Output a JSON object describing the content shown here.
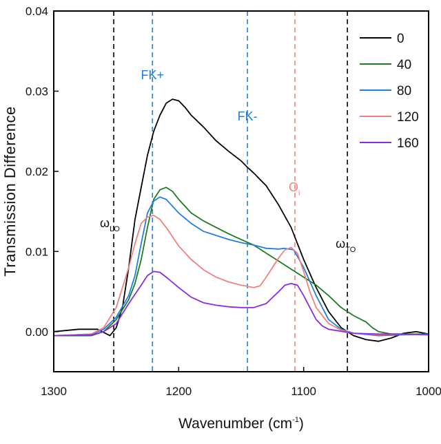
{
  "chart_data": {
    "type": "line",
    "xlabel": "Wavenumber (cm",
    "xlabel_sup": "-1",
    "xlabel_tail": ")",
    "ylabel": "Transmission Difference",
    "xlim": [
      1300,
      1000
    ],
    "ylim": [
      -0.005,
      0.04
    ],
    "x_reversed": true,
    "x_ticks": [
      1300,
      1200,
      1100,
      1000
    ],
    "x_tick_labels": [
      "1300",
      "1200",
      "1100",
      "1000"
    ],
    "y_ticks": [
      0.0,
      0.01,
      0.02,
      0.03,
      0.04
    ],
    "y_tick_labels": [
      "0.00",
      "0.01",
      "0.02",
      "0.03",
      "0.04"
    ],
    "legend_position": "top-right",
    "grid": false,
    "series": [
      {
        "name": "0",
        "color": "#000000",
        "points": [
          [
            1300,
            0.0
          ],
          [
            1280,
            0.0003
          ],
          [
            1265,
            0.0003
          ],
          [
            1255,
            -0.0005
          ],
          [
            1250,
            0.0005
          ],
          [
            1245,
            0.003
          ],
          [
            1240,
            0.008
          ],
          [
            1235,
            0.014
          ],
          [
            1230,
            0.018
          ],
          [
            1225,
            0.022
          ],
          [
            1220,
            0.025
          ],
          [
            1215,
            0.027
          ],
          [
            1210,
            0.0285
          ],
          [
            1205,
            0.029
          ],
          [
            1200,
            0.0288
          ],
          [
            1195,
            0.028
          ],
          [
            1190,
            0.027
          ],
          [
            1180,
            0.0255
          ],
          [
            1170,
            0.0238
          ],
          [
            1160,
            0.0225
          ],
          [
            1150,
            0.0213
          ],
          [
            1145,
            0.0205
          ],
          [
            1140,
            0.0198
          ],
          [
            1130,
            0.0182
          ],
          [
            1120,
            0.0158
          ],
          [
            1110,
            0.013
          ],
          [
            1100,
            0.009
          ],
          [
            1090,
            0.0055
          ],
          [
            1080,
            0.0025
          ],
          [
            1070,
            0.0005
          ],
          [
            1060,
            -0.0005
          ],
          [
            1050,
            -0.001
          ],
          [
            1040,
            -0.0012
          ],
          [
            1030,
            -0.0008
          ],
          [
            1020,
            -0.0002
          ],
          [
            1010,
            0.0
          ],
          [
            1000,
            -0.0003
          ]
        ]
      },
      {
        "name": "40",
        "color": "#1f7a1f",
        "points": [
          [
            1300,
            -0.0005
          ],
          [
            1270,
            -0.0005
          ],
          [
            1260,
            0.0
          ],
          [
            1250,
            0.0015
          ],
          [
            1240,
            0.004
          ],
          [
            1235,
            0.006
          ],
          [
            1230,
            0.009
          ],
          [
            1225,
            0.013
          ],
          [
            1220,
            0.0165
          ],
          [
            1215,
            0.0177
          ],
          [
            1210,
            0.018
          ],
          [
            1205,
            0.0175
          ],
          [
            1200,
            0.0165
          ],
          [
            1190,
            0.0148
          ],
          [
            1180,
            0.0138
          ],
          [
            1170,
            0.013
          ],
          [
            1160,
            0.0122
          ],
          [
            1150,
            0.0115
          ],
          [
            1140,
            0.0108
          ],
          [
            1130,
            0.0098
          ],
          [
            1120,
            0.0088
          ],
          [
            1110,
            0.0078
          ],
          [
            1100,
            0.0068
          ],
          [
            1090,
            0.0058
          ],
          [
            1080,
            0.0045
          ],
          [
            1070,
            0.003
          ],
          [
            1060,
            0.002
          ],
          [
            1050,
            0.0012
          ],
          [
            1045,
            0.0005
          ],
          [
            1040,
            0.0
          ],
          [
            1030,
            -0.0003
          ],
          [
            1015,
            -0.0003
          ],
          [
            1000,
            -0.0003
          ]
        ]
      },
      {
        "name": "80",
        "color": "#1e7fe0",
        "points": [
          [
            1300,
            -0.0005
          ],
          [
            1270,
            -0.0003
          ],
          [
            1260,
            0.0003
          ],
          [
            1250,
            0.0018
          ],
          [
            1240,
            0.0045
          ],
          [
            1235,
            0.007
          ],
          [
            1230,
            0.011
          ],
          [
            1225,
            0.0148
          ],
          [
            1220,
            0.0163
          ],
          [
            1215,
            0.0168
          ],
          [
            1210,
            0.0165
          ],
          [
            1200,
            0.0148
          ],
          [
            1190,
            0.0135
          ],
          [
            1180,
            0.0125
          ],
          [
            1170,
            0.012
          ],
          [
            1160,
            0.0115
          ],
          [
            1150,
            0.0111
          ],
          [
            1140,
            0.0108
          ],
          [
            1130,
            0.0104
          ],
          [
            1120,
            0.0103
          ],
          [
            1115,
            0.0104
          ],
          [
            1108,
            0.0102
          ],
          [
            1100,
            0.008
          ],
          [
            1090,
            0.0045
          ],
          [
            1080,
            0.0015
          ],
          [
            1070,
            0.0003
          ],
          [
            1060,
            -0.0002
          ],
          [
            1040,
            -0.0005
          ],
          [
            1020,
            -0.0004
          ],
          [
            1000,
            -0.0003
          ]
        ]
      },
      {
        "name": "120",
        "color": "#f08080",
        "points": [
          [
            1300,
            -0.0005
          ],
          [
            1270,
            -0.0003
          ],
          [
            1260,
            0.0005
          ],
          [
            1250,
            0.003
          ],
          [
            1240,
            0.008
          ],
          [
            1235,
            0.011
          ],
          [
            1230,
            0.0135
          ],
          [
            1225,
            0.0143
          ],
          [
            1220,
            0.0145
          ],
          [
            1215,
            0.014
          ],
          [
            1210,
            0.013
          ],
          [
            1200,
            0.0107
          ],
          [
            1190,
            0.009
          ],
          [
            1180,
            0.0077
          ],
          [
            1170,
            0.0068
          ],
          [
            1160,
            0.0062
          ],
          [
            1150,
            0.0058
          ],
          [
            1140,
            0.0055
          ],
          [
            1135,
            0.0057
          ],
          [
            1130,
            0.0068
          ],
          [
            1120,
            0.0092
          ],
          [
            1115,
            0.0102
          ],
          [
            1110,
            0.0105
          ],
          [
            1105,
            0.0098
          ],
          [
            1100,
            0.0075
          ],
          [
            1095,
            0.005
          ],
          [
            1090,
            0.003
          ],
          [
            1080,
            0.001
          ],
          [
            1070,
            0.0002
          ],
          [
            1060,
            -0.0002
          ],
          [
            1040,
            -0.0004
          ],
          [
            1020,
            -0.0003
          ],
          [
            1000,
            -0.0004
          ]
        ]
      },
      {
        "name": "160",
        "color": "#8a2be2",
        "points": [
          [
            1300,
            -0.0005
          ],
          [
            1270,
            -0.0004
          ],
          [
            1260,
            0.0
          ],
          [
            1250,
            0.001
          ],
          [
            1240,
            0.0035
          ],
          [
            1230,
            0.0058
          ],
          [
            1225,
            0.007
          ],
          [
            1220,
            0.0075
          ],
          [
            1215,
            0.0074
          ],
          [
            1210,
            0.0068
          ],
          [
            1200,
            0.0055
          ],
          [
            1190,
            0.0043
          ],
          [
            1180,
            0.0036
          ],
          [
            1170,
            0.0033
          ],
          [
            1160,
            0.0031
          ],
          [
            1150,
            0.003
          ],
          [
            1140,
            0.003
          ],
          [
            1130,
            0.0035
          ],
          [
            1120,
            0.005
          ],
          [
            1115,
            0.0058
          ],
          [
            1110,
            0.006
          ],
          [
            1105,
            0.0058
          ],
          [
            1100,
            0.0045
          ],
          [
            1095,
            0.003
          ],
          [
            1090,
            0.0015
          ],
          [
            1085,
            0.0007
          ],
          [
            1080,
            0.0003
          ],
          [
            1060,
            -0.0002
          ],
          [
            1040,
            -0.0003
          ],
          [
            1020,
            -0.0003
          ],
          [
            1000,
            -0.0004
          ]
        ]
      }
    ],
    "vlines": [
      {
        "x": 1252,
        "color": "#000000",
        "label": "ω",
        "label_sub": "LO"
      },
      {
        "x": 1221,
        "color": "#1e7fe0",
        "label": "FK+",
        "label_sub": ""
      },
      {
        "x": 1145,
        "color": "#1e7fe0",
        "label": "FK-",
        "label_sub": ""
      },
      {
        "x": 1107,
        "color": "#f08080",
        "label": "O",
        "label_sub": "i"
      },
      {
        "x": 1065,
        "color": "#000000",
        "label": "ω",
        "label_sub": "TO"
      }
    ]
  }
}
